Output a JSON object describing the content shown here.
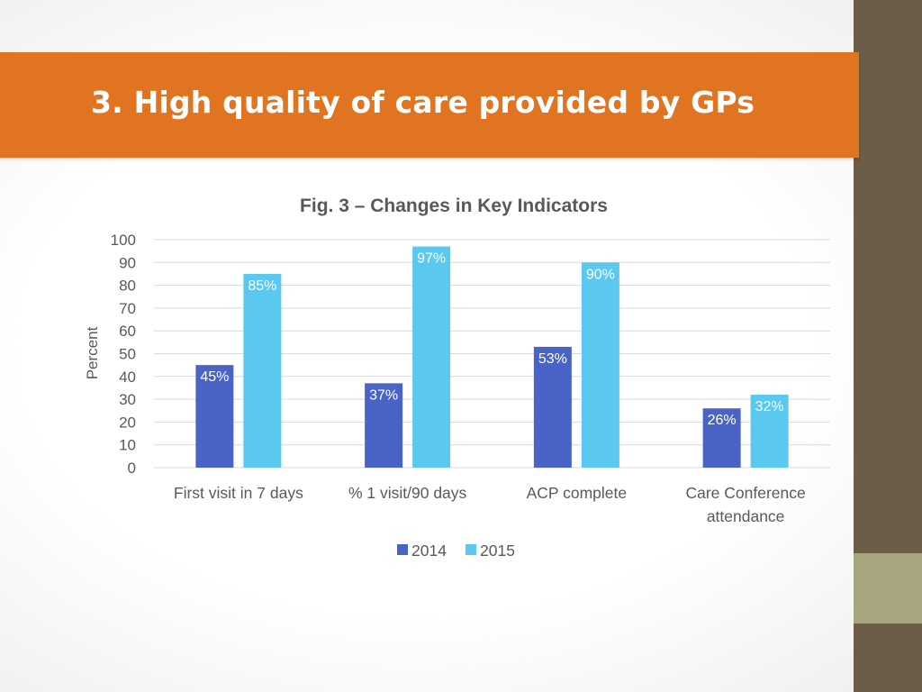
{
  "slide": {
    "title": "3. High quality of care provided by GPs",
    "colors": {
      "banner": "#e07420",
      "sidebar_dark": "#6b5d48",
      "sidebar_light": "#a8a67e",
      "text_gray": "#595959",
      "gridline": "#d9d9d9"
    }
  },
  "chart_data": {
    "type": "bar",
    "title": "Fig. 3 – Changes in Key Indicators",
    "xlabel": "",
    "ylabel": "Percent",
    "ylim": [
      0,
      100
    ],
    "yticks": [
      0,
      10,
      20,
      30,
      40,
      50,
      60,
      70,
      80,
      90,
      100
    ],
    "grid": true,
    "legend_position": "bottom",
    "categories": [
      [
        "First visit in 7 days"
      ],
      [
        "% 1 visit/90 days"
      ],
      [
        "ACP complete"
      ],
      [
        "Care Conference",
        "attendance"
      ]
    ],
    "series": [
      {
        "name": "2014",
        "color": "#4a63c6",
        "values": [
          45,
          37,
          53,
          26
        ],
        "labels": [
          "45%",
          "37%",
          "53%",
          "26%"
        ]
      },
      {
        "name": "2015",
        "color": "#5bc8f0",
        "values": [
          85,
          97,
          90,
          32
        ],
        "labels": [
          "85%",
          "97%",
          "90%",
          "32%"
        ]
      }
    ]
  }
}
